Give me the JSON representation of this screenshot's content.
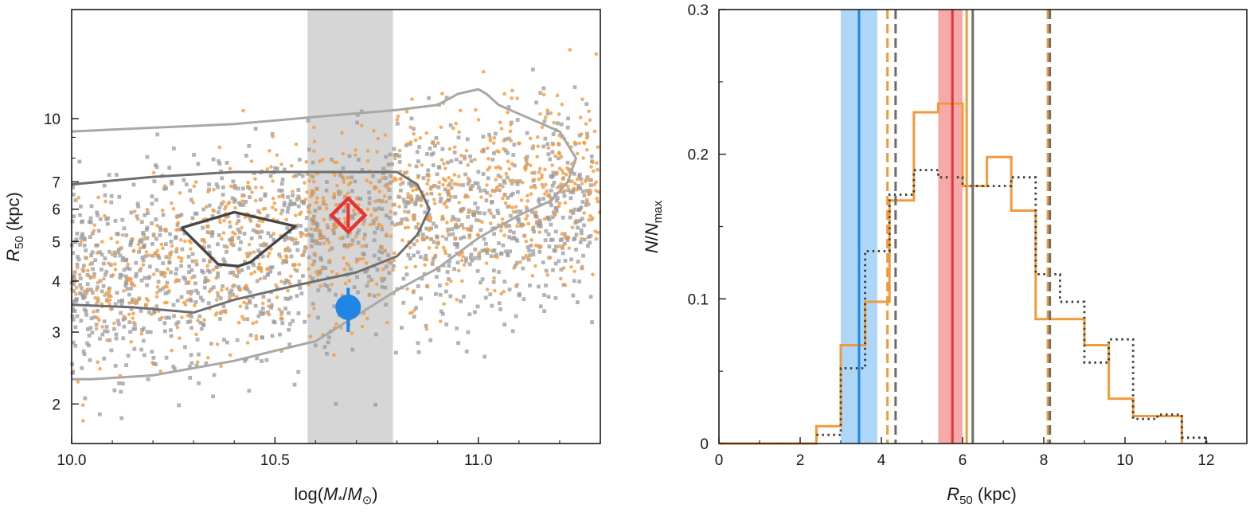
{
  "colors": {
    "orange": "#F29A3A",
    "orange_points": "#F39A3D",
    "gray_points": "#9a9a9a",
    "contour_light": "#a8a8a8",
    "contour_mid": "#6e6e6e",
    "contour_dark": "#444444",
    "blue": "#1f86e6",
    "blue_band": "#aed6f7",
    "red": "#e63232",
    "red_band": "#f5a9a9",
    "gray_band": "#d6d6d6",
    "hist_dotted": "#3a3a3a"
  },
  "chart_data": [
    {
      "type": "scatter",
      "xlabel": {
        "pre": "log(",
        "m1": "M",
        "sub1": "*",
        "slash": "/",
        "m2": "M",
        "sub2": "⊙",
        "post": ")"
      },
      "ylabel": {
        "r": "R",
        "sub": "50",
        "unit": " (kpc)"
      },
      "xlim": [
        10.0,
        11.3
      ],
      "ylim": [
        1.6,
        18.5
      ],
      "yscale": "log",
      "xticks": [
        "10.0",
        "10.5",
        "11.0"
      ],
      "xtick_values": [
        10.0,
        10.5,
        11.0
      ],
      "yticks": [
        "2",
        "3",
        "4",
        "5",
        "6",
        "7",
        "10"
      ],
      "ytick_values": [
        2,
        3,
        4,
        5,
        6,
        7,
        10
      ],
      "shaded_band_x": [
        10.58,
        10.79
      ],
      "highlight_points": [
        {
          "name": "",
          "marker": "diamond",
          "x": 10.68,
          "y": 5.8,
          "yerr": [
            5.4,
            6.2
          ],
          "color": "red"
        },
        {
          "name": "",
          "marker": "circle",
          "x": 10.68,
          "y": 3.45,
          "yerr": [
            3.0,
            3.85
          ],
          "color": "blue"
        }
      ],
      "contours": [
        {
          "level": "outer",
          "points": [
            [
              10.0,
              9.3
            ],
            [
              10.2,
              9.5
            ],
            [
              10.4,
              9.7
            ],
            [
              10.6,
              10.1
            ],
            [
              10.8,
              10.5
            ],
            [
              10.9,
              10.8
            ],
            [
              10.95,
              11.5
            ],
            [
              11.0,
              11.8
            ],
            [
              11.02,
              11.5
            ],
            [
              11.05,
              10.8
            ],
            [
              11.2,
              9.3
            ],
            [
              11.24,
              8.0
            ],
            [
              11.22,
              7.0
            ],
            [
              11.18,
              6.3
            ],
            [
              11.1,
              5.8
            ],
            [
              11.0,
              5.1
            ],
            [
              10.9,
              4.3
            ],
            [
              10.8,
              3.8
            ],
            [
              10.6,
              2.85
            ],
            [
              10.5,
              2.7
            ],
            [
              10.4,
              2.55
            ],
            [
              10.2,
              2.35
            ],
            [
              10.05,
              2.3
            ],
            [
              10.0,
              2.3
            ]
          ]
        },
        {
          "level": "middle",
          "points": [
            [
              10.0,
              6.9
            ],
            [
              10.2,
              7.2
            ],
            [
              10.4,
              7.4
            ],
            [
              10.6,
              7.4
            ],
            [
              10.8,
              7.4
            ],
            [
              10.85,
              6.9
            ],
            [
              10.88,
              6.0
            ],
            [
              10.85,
              5.2
            ],
            [
              10.8,
              4.6
            ],
            [
              10.7,
              4.2
            ],
            [
              10.55,
              3.9
            ],
            [
              10.4,
              3.6
            ],
            [
              10.3,
              3.35
            ],
            [
              10.15,
              3.45
            ],
            [
              10.0,
              3.5
            ]
          ]
        },
        {
          "level": "inner",
          "points": [
            [
              10.27,
              5.4
            ],
            [
              10.4,
              5.9
            ],
            [
              10.55,
              5.45
            ],
            [
              10.44,
              4.45
            ],
            [
              10.41,
              4.35
            ],
            [
              10.36,
              4.4
            ],
            [
              10.27,
              5.4
            ]
          ]
        }
      ]
    },
    {
      "type": "line",
      "xlabel": {
        "r": "R",
        "sub": "50",
        "unit": " (kpc)"
      },
      "ylabel": {
        "n": "N",
        "slash": "/",
        "n2": "N",
        "sub": "max"
      },
      "xlim": [
        0,
        13
      ],
      "ylim": [
        0,
        0.3
      ],
      "xticks": [
        "0",
        "2",
        "4",
        "6",
        "8",
        "10",
        "12"
      ],
      "xtick_values": [
        0,
        2,
        4,
        6,
        8,
        10,
        12
      ],
      "yticks": [
        "0",
        "0.1",
        "0.2",
        "0.3"
      ],
      "ytick_values": [
        0,
        0.1,
        0.2,
        0.3
      ],
      "bands": [
        {
          "color": "blue_band",
          "x": [
            3.0,
            3.9
          ]
        },
        {
          "color": "red_band",
          "x": [
            5.4,
            6.0
          ]
        }
      ],
      "vlines": [
        {
          "x": 3.45,
          "color": "blue",
          "style": "solid"
        },
        {
          "x": 4.15,
          "color": "orange",
          "style": "dashed"
        },
        {
          "x": 4.35,
          "color": "contour_mid",
          "style": "dashed"
        },
        {
          "x": 5.75,
          "color": "red",
          "style": "solid"
        },
        {
          "x": 6.1,
          "color": "orange",
          "style": "solid"
        },
        {
          "x": 6.25,
          "color": "contour_mid",
          "style": "solid"
        },
        {
          "x": 8.1,
          "color": "orange",
          "style": "dashed"
        },
        {
          "x": 8.15,
          "color": "contour_mid",
          "style": "dashed"
        }
      ],
      "series": [
        {
          "name": "",
          "style": "solid",
          "color": "orange",
          "edges": [
            0,
            2.4,
            3.0,
            3.6,
            4.2,
            4.8,
            5.4,
            6.0,
            6.6,
            7.2,
            7.8,
            8.4,
            9.0,
            9.6,
            10.2,
            10.8,
            11.4
          ],
          "values": [
            0.0,
            0.012,
            0.068,
            0.098,
            0.168,
            0.229,
            0.235,
            0.178,
            0.198,
            0.161,
            0.086,
            0.086,
            0.068,
            0.031,
            0.019,
            0.019
          ]
        },
        {
          "name": "",
          "style": "dotted",
          "color": "hist_dotted",
          "edges": [
            2.4,
            3.0,
            3.6,
            4.2,
            4.8,
            5.4,
            6.0,
            6.6,
            7.2,
            7.8,
            8.4,
            9.0,
            9.6,
            10.2,
            10.8,
            11.4,
            12.0
          ],
          "values": [
            0.006,
            0.052,
            0.133,
            0.172,
            0.189,
            0.184,
            0.178,
            0.178,
            0.184,
            0.117,
            0.098,
            0.056,
            0.072,
            0.017,
            0.02,
            0.004
          ]
        }
      ]
    }
  ]
}
